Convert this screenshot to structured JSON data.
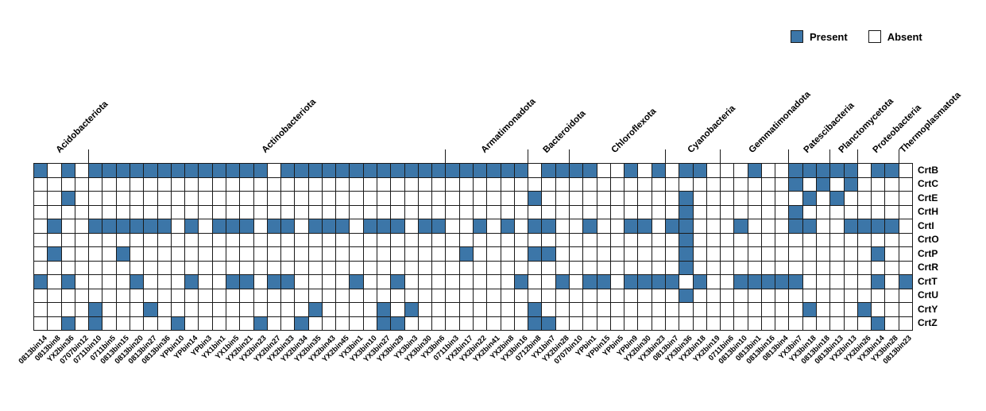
{
  "legend": {
    "present_label": "Present",
    "absent_label": "Absent"
  },
  "colors": {
    "present": "#3C76A8",
    "absent": "#FFFFFF",
    "border": "#1A1A1A"
  },
  "chart_data": {
    "type": "heatmap",
    "value_encoding": "1 = gene present, 0 = gene absent",
    "rows": [
      "CrtB",
      "CrtC",
      "CrtE",
      "CrtH",
      "CrtI",
      "CrtO",
      "CrtP",
      "CrtR",
      "CrtT",
      "CrtU",
      "CrtY",
      "CrtZ"
    ],
    "columns": [
      "0813bin14",
      "0813bin8",
      "YX2bin36",
      "0707bin12",
      "0711bin10",
      "0711bin5",
      "0813bin15",
      "0813bin20",
      "0813bin27",
      "0813bin36",
      "YPbin10",
      "YPbin14",
      "YPbin3",
      "YX1bin1",
      "YX1bin5",
      "YX2bin21",
      "YX2bin23",
      "YX2bin27",
      "YX2bin33",
      "YX2bin34",
      "YX2bin35",
      "YX2bin43",
      "YX2bin45",
      "YX3bin1",
      "YX3bin10",
      "YX3bin27",
      "YX3bin29",
      "YX3bin3",
      "YX3bin30",
      "YX3bin6",
      "0711bin3",
      "YX2bin17",
      "YX2bin22",
      "YX2bin41",
      "YX2bin8",
      "YX3bin16",
      "0712bin8",
      "YX1bin7",
      "YX2bin28",
      "0707bin10",
      "YPbin1",
      "YPbin15",
      "YPbin5",
      "YPbin9",
      "YX2bin30",
      "YX3bin23",
      "0813bin7",
      "YX3bin36",
      "YX2bin18",
      "YX2bin19",
      "0711bin6",
      "0813bin10",
      "0813bin1",
      "0813bin16",
      "0813bin4",
      "YX3bin7",
      "YX3bin18",
      "0813bin18",
      "0813bin13",
      "YX2bin13",
      "YX2bin26",
      "YX3bin14",
      "YX3bin28",
      "0813bin23"
    ],
    "groups": [
      {
        "name": "Acidobacteriota",
        "start": 0,
        "count": 4
      },
      {
        "name": "Actinobacteriota",
        "start": 4,
        "count": 26
      },
      {
        "name": "Armatimonadota",
        "start": 30,
        "count": 6
      },
      {
        "name": "Bacteroidota",
        "start": 36,
        "count": 3
      },
      {
        "name": "Chloroflexota",
        "start": 39,
        "count": 7
      },
      {
        "name": "Cyanobacteria",
        "start": 46,
        "count": 4
      },
      {
        "name": "Gemmatimonadota",
        "start": 50,
        "count": 5
      },
      {
        "name": "Patescibacteria",
        "start": 55,
        "count": 3
      },
      {
        "name": "Planctomycetota",
        "start": 58,
        "count": 2
      },
      {
        "name": "Proteobacteria",
        "start": 60,
        "count": 3
      },
      {
        "name": "Thermoplasmatota",
        "start": 63,
        "count": 1
      }
    ],
    "matrix": [
      "1010111111111111101111111111111111110111100101011000100111110110",
      "0000000000000000000000000000000000000000000000000000000101010000",
      "0010000000000000000000000000000000001000000000010000000010100000",
      "0000000000000000000000000000000000000000000000010000000100000000",
      "0100111111010111011011101110110010101100100110110001000110011110",
      "0000000000000000000000000000000000000000000000010000000000000000",
      "0100001000000000000000000000000100001100000000010000000000000100",
      "0000000000000000000000000000000000000000000000010000000000000000",
      "1010000100010011011000010010000000010010110111101001111100000101",
      "0000000000000000000000000000000000000000000000010000000000000000",
      "0000100010000000000010000101000000001000000000000000000010001000",
      "0010100000100000100100000110000000001100000000000000000000000100"
    ]
  }
}
